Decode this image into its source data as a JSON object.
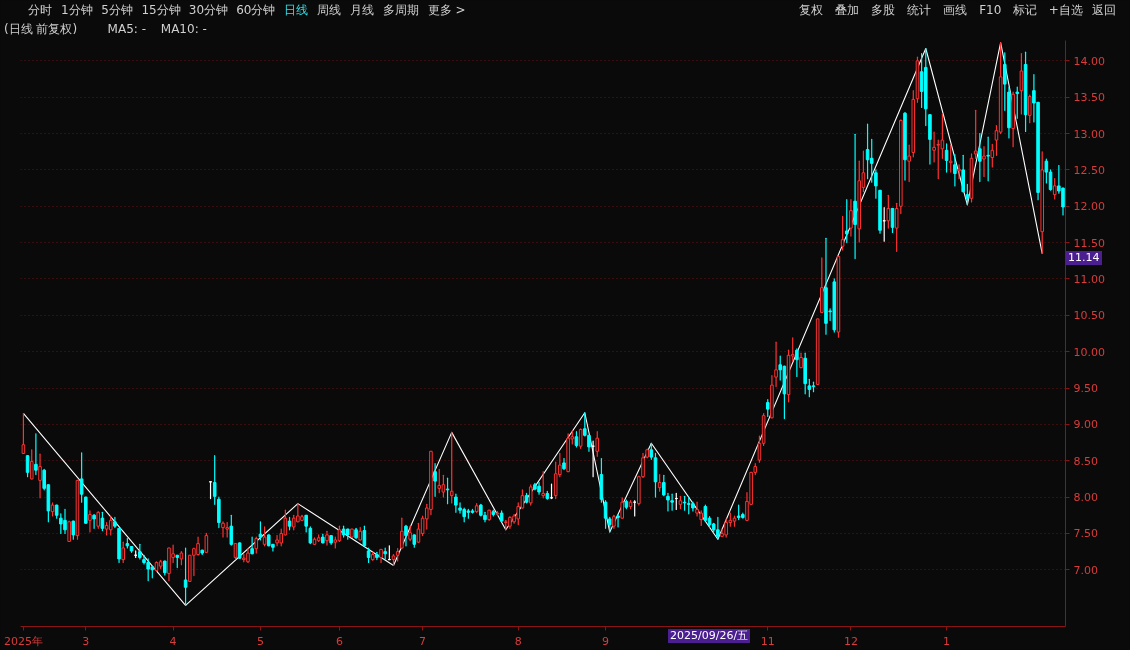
{
  "chart_data": {
    "type": "candlestick",
    "title": "(日线 前复权)",
    "annotations": [
      "分时",
      "1分钟",
      "5分钟",
      "15分钟",
      "30分钟",
      "60分钟",
      "日线",
      "周线",
      "月线",
      "多周期",
      "更多 >",
      "复权",
      "叠加",
      "多股",
      "统计",
      "画线",
      "F10",
      "标记",
      "+自选",
      "返回",
      "MA5: -",
      "MA10: -",
      "2025/09/26/五",
      "11.14"
    ],
    "categories": [
      "2025年",
      null,
      null,
      null,
      null,
      null,
      null,
      null,
      null,
      null,
      null,
      null,
      null,
      null,
      null,
      "3",
      null,
      null,
      null,
      null,
      null,
      null,
      null,
      null,
      null,
      null,
      null,
      null,
      null,
      null,
      null,
      null,
      null,
      null,
      null,
      null,
      "4",
      null,
      null,
      null,
      null,
      null,
      null,
      null,
      null,
      null,
      null,
      null,
      null,
      null,
      null,
      null,
      null,
      null,
      null,
      null,
      null,
      "5",
      null,
      null,
      null,
      null,
      null,
      null,
      null,
      null,
      null,
      null,
      null,
      null,
      null,
      null,
      null,
      null,
      null,
      null,
      "6",
      null,
      null,
      null,
      null,
      null,
      null,
      null,
      null,
      null,
      null,
      null,
      null,
      null,
      null,
      null,
      null,
      null,
      null,
      null,
      "7",
      null,
      null,
      null,
      null,
      null,
      null,
      null,
      null,
      null,
      null,
      null,
      null,
      null,
      null,
      null,
      null,
      null,
      null,
      null,
      null,
      null,
      null,
      "8",
      null,
      null,
      null,
      null,
      null,
      null,
      null,
      null,
      null,
      null,
      null,
      null,
      null,
      null,
      null,
      null,
      null,
      null,
      null,
      null,
      "9",
      null,
      null,
      null,
      null,
      null,
      null,
      null,
      null,
      null,
      null,
      null,
      null,
      null,
      null,
      null,
      null,
      null,
      null,
      null,
      null,
      null,
      null,
      null,
      null,
      null,
      null,
      null,
      null,
      null,
      null,
      null,
      null,
      null,
      null,
      null,
      null,
      null,
      null,
      "11",
      null,
      null,
      null,
      null,
      null,
      null,
      null,
      null,
      null,
      null,
      null,
      null,
      null,
      null,
      null,
      null,
      null,
      null,
      null,
      "12",
      null,
      null,
      null,
      null,
      null,
      null,
      null,
      null,
      null,
      null,
      null,
      null,
      null,
      null,
      null,
      null,
      null,
      null,
      null,
      null,
      null,
      null,
      "1",
      null,
      null,
      null,
      null,
      null,
      null,
      null,
      null,
      null,
      null,
      null,
      null,
      null,
      null,
      null,
      null,
      null,
      null,
      null,
      null,
      null,
      null,
      null,
      null,
      null,
      null,
      null,
      null
    ],
    "ohlc": [
      [
        8.6,
        9.15,
        8.6,
        8.72
      ],
      [
        8.57,
        8.57,
        8.28,
        8.34
      ],
      [
        8.25,
        8.65,
        8.25,
        8.49
      ],
      [
        8.45,
        8.87,
        8.31,
        8.37
      ],
      [
        8.23,
        8.59,
        7.99,
        8.42
      ],
      [
        8.37,
        8.38,
        8.1,
        8.12
      ],
      [
        8.17,
        8.17,
        7.66,
        7.81
      ],
      [
        7.8,
        7.92,
        7.74,
        7.89
      ],
      [
        7.89,
        7.89,
        7.71,
        7.75
      ],
      [
        7.71,
        7.77,
        7.5,
        7.63
      ],
      [
        7.68,
        7.83,
        7.5,
        7.55
      ],
      [
        7.39,
        7.67,
        7.39,
        7.66
      ],
      [
        7.67,
        7.67,
        7.42,
        7.48
      ],
      [
        7.47,
        8.23,
        7.42,
        8.23
      ],
      [
        8.25,
        8.61,
        7.93,
        8.04
      ],
      [
        8.0,
        8.0,
        7.64,
        7.64
      ],
      [
        7.68,
        7.81,
        7.52,
        7.76
      ],
      [
        7.75,
        7.76,
        7.57,
        7.7
      ],
      [
        7.6,
        7.8,
        7.57,
        7.79
      ],
      [
        7.71,
        7.79,
        7.54,
        7.57
      ],
      [
        7.56,
        7.65,
        7.48,
        7.61
      ],
      [
        7.55,
        7.73,
        7.48,
        7.68
      ],
      [
        7.66,
        7.72,
        7.58,
        7.6
      ],
      [
        7.57,
        7.57,
        7.1,
        7.15
      ],
      [
        7.14,
        7.38,
        7.1,
        7.3
      ],
      [
        7.36,
        7.43,
        7.3,
        7.33
      ],
      [
        7.32,
        7.32,
        7.24,
        7.26
      ],
      [
        7.2,
        7.26,
        7.17,
        7.2
      ],
      [
        7.25,
        7.35,
        7.15,
        7.17
      ],
      [
        7.14,
        7.2,
        7.08,
        7.1
      ],
      [
        7.1,
        7.15,
        6.85,
        7.01
      ],
      [
        7.04,
        7.04,
        6.89,
        7.0
      ],
      [
        6.99,
        7.11,
        6.98,
        7.1
      ],
      [
        7.05,
        7.13,
        7.02,
        7.11
      ],
      [
        7.12,
        7.12,
        6.93,
        6.96
      ],
      [
        6.95,
        7.3,
        6.85,
        7.3
      ],
      [
        7.17,
        7.34,
        7.1,
        7.22
      ],
      [
        7.2,
        7.2,
        7.03,
        7.17
      ],
      [
        7.15,
        7.25,
        7.07,
        7.23
      ],
      [
        6.86,
        7.3,
        6.51,
        6.76
      ],
      [
        6.84,
        7.2,
        6.84,
        7.2
      ],
      [
        7.2,
        7.3,
        6.92,
        7.29
      ],
      [
        7.21,
        7.45,
        7.2,
        7.36
      ],
      [
        7.27,
        7.27,
        7.21,
        7.23
      ],
      [
        7.24,
        7.5,
        7.24,
        7.47
      ],
      [
        8.21,
        8.21,
        7.98,
        8.21
      ],
      [
        8.2,
        8.57,
        7.9,
        8.01
      ],
      [
        7.97,
        8.0,
        7.58,
        7.65
      ],
      [
        7.58,
        7.66,
        7.45,
        7.64
      ],
      [
        7.56,
        7.65,
        7.45,
        7.58
      ],
      [
        7.6,
        7.75,
        7.34,
        7.35
      ],
      [
        7.17,
        7.36,
        7.15,
        7.36
      ],
      [
        7.37,
        7.37,
        7.16,
        7.16
      ],
      [
        7.14,
        7.21,
        7.11,
        7.16
      ],
      [
        7.11,
        7.29,
        7.1,
        7.23
      ],
      [
        7.29,
        7.45,
        7.22,
        7.22
      ],
      [
        7.29,
        7.45,
        7.23,
        7.43
      ],
      [
        7.49,
        7.66,
        7.41,
        7.45
      ],
      [
        7.35,
        7.59,
        7.33,
        7.45
      ],
      [
        7.48,
        7.48,
        7.33,
        7.33
      ],
      [
        7.35,
        7.35,
        7.26,
        7.31
      ],
      [
        7.37,
        7.47,
        7.33,
        7.41
      ],
      [
        7.37,
        7.56,
        7.33,
        7.5
      ],
      [
        7.48,
        7.82,
        7.48,
        7.71
      ],
      [
        7.67,
        7.72,
        7.55,
        7.6
      ],
      [
        7.59,
        7.75,
        7.55,
        7.71
      ],
      [
        7.66,
        7.91,
        7.66,
        7.74
      ],
      [
        7.68,
        7.75,
        7.68,
        7.73
      ],
      [
        7.75,
        7.75,
        7.52,
        7.6
      ],
      [
        7.57,
        7.59,
        7.36,
        7.37
      ],
      [
        7.35,
        7.44,
        7.35,
        7.42
      ],
      [
        7.4,
        7.48,
        7.39,
        7.44
      ],
      [
        7.45,
        7.49,
        7.37,
        7.37
      ],
      [
        7.4,
        7.53,
        7.34,
        7.48
      ],
      [
        7.47,
        7.47,
        7.35,
        7.37
      ],
      [
        7.38,
        7.45,
        7.3,
        7.41
      ],
      [
        7.4,
        7.6,
        7.39,
        7.55
      ],
      [
        7.56,
        7.6,
        7.45,
        7.48
      ],
      [
        7.56,
        7.56,
        7.42,
        7.48
      ],
      [
        7.45,
        7.56,
        7.45,
        7.56
      ],
      [
        7.55,
        7.57,
        7.43,
        7.44
      ],
      [
        7.41,
        7.58,
        7.41,
        7.53
      ],
      [
        7.54,
        7.6,
        7.33,
        7.33
      ],
      [
        7.26,
        7.3,
        7.1,
        7.17
      ],
      [
        7.14,
        7.24,
        7.13,
        7.21
      ],
      [
        7.21,
        7.24,
        7.14,
        7.17
      ],
      [
        7.17,
        7.28,
        7.1,
        7.28
      ],
      [
        7.25,
        7.3,
        7.15,
        7.22
      ],
      [
        7.14,
        7.33,
        7.14,
        7.14
      ],
      [
        7.14,
        7.21,
        7.06,
        7.19
      ],
      [
        7.2,
        7.29,
        7.12,
        7.25
      ],
      [
        7.3,
        7.71,
        7.3,
        7.53
      ],
      [
        7.6,
        7.61,
        7.33,
        7.47
      ],
      [
        7.42,
        7.6,
        7.4,
        7.51
      ],
      [
        7.48,
        7.48,
        7.31,
        7.35
      ],
      [
        7.38,
        7.64,
        7.38,
        7.56
      ],
      [
        7.5,
        7.74,
        7.47,
        7.71
      ],
      [
        7.7,
        7.9,
        7.56,
        7.85
      ],
      [
        7.83,
        8.63,
        7.76,
        8.63
      ],
      [
        8.35,
        8.46,
        8.01,
        8.22
      ],
      [
        8.12,
        8.38,
        8.06,
        8.16
      ],
      [
        8.07,
        8.3,
        8.0,
        8.17
      ],
      [
        8.11,
        8.26,
        7.91,
        8.1
      ],
      [
        8.02,
        8.89,
        7.92,
        8.08
      ],
      [
        8.0,
        8.04,
        7.79,
        7.89
      ],
      [
        7.85,
        7.92,
        7.78,
        7.82
      ],
      [
        7.83,
        7.85,
        7.66,
        7.73
      ],
      [
        7.81,
        7.83,
        7.71,
        7.79
      ],
      [
        7.81,
        7.83,
        7.78,
        7.79
      ],
      [
        7.8,
        7.91,
        7.79,
        7.88
      ],
      [
        7.89,
        7.9,
        7.74,
        7.75
      ],
      [
        7.75,
        7.79,
        7.66,
        7.69
      ],
      [
        7.69,
        7.82,
        7.68,
        7.82
      ],
      [
        7.8,
        7.82,
        7.74,
        7.76
      ],
      [
        7.77,
        7.8,
        7.75,
        7.78
      ],
      [
        7.78,
        7.81,
        7.66,
        7.67
      ],
      [
        7.65,
        7.68,
        7.55,
        7.66
      ],
      [
        7.6,
        7.73,
        7.57,
        7.72
      ],
      [
        7.66,
        7.76,
        7.64,
        7.74
      ],
      [
        7.7,
        7.92,
        7.62,
        7.87
      ],
      [
        7.85,
        8.1,
        7.85,
        8.02
      ],
      [
        8.02,
        8.05,
        7.92,
        7.93
      ],
      [
        7.92,
        8.17,
        7.89,
        8.14
      ],
      [
        8.17,
        8.19,
        8.1,
        8.11
      ],
      [
        8.15,
        8.2,
        8.04,
        8.07
      ],
      [
        8.02,
        8.35,
        7.99,
        8.05
      ],
      [
        8.05,
        8.08,
        7.97,
        7.98
      ],
      [
        7.99,
        8.18,
        7.98,
        7.99
      ],
      [
        8.02,
        8.48,
        7.98,
        8.32
      ],
      [
        8.31,
        8.6,
        8.28,
        8.44
      ],
      [
        8.47,
        8.53,
        8.38,
        8.39
      ],
      [
        8.35,
        8.87,
        8.35,
        8.81
      ],
      [
        8.8,
        8.91,
        8.73,
        8.83
      ],
      [
        8.83,
        8.9,
        8.69,
        8.71
      ],
      [
        8.7,
        8.94,
        8.67,
        8.93
      ],
      [
        8.94,
        9.16,
        8.84,
        8.85
      ],
      [
        8.85,
        8.85,
        8.63,
        8.69
      ],
      [
        8.7,
        8.77,
        8.28,
        8.7
      ],
      [
        8.63,
        8.9,
        8.56,
        8.81
      ],
      [
        8.31,
        8.53,
        7.93,
        7.97
      ],
      [
        7.93,
        7.95,
        7.57,
        7.71
      ],
      [
        7.7,
        7.72,
        7.52,
        7.62
      ],
      [
        7.6,
        7.75,
        7.57,
        7.73
      ],
      [
        7.74,
        7.76,
        7.59,
        7.72
      ],
      [
        7.71,
        7.99,
        7.71,
        7.93
      ],
      [
        7.94,
        7.96,
        7.84,
        7.86
      ],
      [
        7.87,
        7.95,
        7.84,
        7.93
      ],
      [
        7.93,
        7.95,
        7.74,
        7.93
      ],
      [
        7.91,
        8.29,
        7.89,
        8.28
      ],
      [
        8.28,
        8.6,
        8.27,
        8.54
      ],
      [
        8.55,
        8.66,
        8.54,
        8.65
      ],
      [
        8.65,
        8.74,
        8.52,
        8.55
      ],
      [
        8.54,
        8.6,
        8.0,
        8.21
      ],
      [
        8.13,
        8.31,
        8.08,
        8.2
      ],
      [
        8.2,
        8.3,
        8.02,
        8.03
      ],
      [
        8.01,
        8.05,
        7.81,
        7.96
      ],
      [
        7.95,
        8.04,
        7.82,
        7.93
      ],
      [
        7.98,
        8.05,
        7.83,
        7.98
      ],
      [
        7.9,
        8.01,
        7.84,
        7.95
      ],
      [
        7.93,
        8.01,
        7.82,
        7.92
      ],
      [
        7.91,
        8.0,
        7.77,
        7.9
      ],
      [
        7.91,
        7.93,
        7.81,
        7.85
      ],
      [
        7.78,
        7.93,
        7.74,
        7.83
      ],
      [
        7.69,
        7.81,
        7.61,
        7.78
      ],
      [
        7.87,
        7.89,
        7.67,
        7.68
      ],
      [
        7.71,
        7.73,
        7.58,
        7.62
      ],
      [
        7.63,
        7.64,
        7.52,
        7.55
      ],
      [
        7.55,
        7.72,
        7.42,
        7.46
      ],
      [
        7.46,
        7.56,
        7.46,
        7.5
      ],
      [
        7.48,
        7.7,
        7.45,
        7.65
      ],
      [
        7.65,
        7.78,
        7.6,
        7.68
      ],
      [
        7.67,
        7.74,
        7.6,
        7.71
      ],
      [
        7.74,
        7.89,
        7.69,
        7.72
      ],
      [
        7.76,
        7.78,
        7.71,
        7.72
      ],
      [
        7.68,
        8.06,
        7.68,
        7.94
      ],
      [
        7.9,
        8.34,
        7.9,
        8.34
      ],
      [
        8.34,
        8.46,
        8.31,
        8.42
      ],
      [
        8.51,
        8.84,
        8.48,
        8.74
      ],
      [
        8.74,
        9.15,
        8.71,
        9.12
      ],
      [
        9.3,
        9.34,
        9.11,
        9.21
      ],
      [
        9.09,
        9.67,
        9.09,
        9.54
      ],
      [
        9.65,
        10.13,
        9.52,
        9.75
      ],
      [
        9.82,
        9.94,
        9.61,
        9.75
      ],
      [
        9.8,
        9.8,
        9.08,
        9.42
      ],
      [
        9.41,
        10.02,
        9.31,
        9.95
      ],
      [
        9.94,
        10.19,
        9.88,
        9.96
      ],
      [
        10.02,
        10.04,
        9.66,
        9.89
      ],
      [
        9.78,
        9.98,
        9.78,
        9.92
      ],
      [
        9.91,
        9.98,
        9.42,
        9.56
      ],
      [
        9.53,
        9.62,
        9.38,
        9.48
      ],
      [
        9.53,
        9.58,
        9.45,
        9.52
      ],
      [
        9.55,
        10.45,
        9.55,
        10.45
      ],
      [
        10.54,
        11.29,
        10.54,
        10.88
      ],
      [
        10.88,
        11.56,
        10.24,
        10.39
      ],
      [
        10.56,
        10.59,
        10.43,
        10.55
      ],
      [
        10.96,
        11.0,
        10.27,
        10.3
      ],
      [
        10.27,
        11.31,
        10.2,
        11.31
      ],
      [
        11.45,
        11.86,
        11.4,
        11.54
      ],
      [
        11.66,
        12.09,
        11.5,
        11.62
      ],
      [
        11.7,
        12.09,
        11.59,
        11.94
      ],
      [
        12.07,
        12.99,
        11.28,
        11.75
      ],
      [
        11.69,
        12.62,
        11.51,
        12.35
      ],
      [
        12.26,
        12.76,
        12.2,
        12.46
      ],
      [
        12.78,
        13.13,
        12.38,
        12.64
      ],
      [
        12.66,
        12.92,
        12.33,
        12.59
      ],
      [
        12.46,
        12.5,
        12.11,
        12.28
      ],
      [
        12.22,
        12.22,
        11.63,
        11.67
      ],
      [
        11.8,
        11.98,
        11.52,
        11.8
      ],
      [
        11.8,
        12.15,
        11.7,
        11.97
      ],
      [
        11.97,
        11.97,
        11.64,
        11.71
      ],
      [
        11.7,
        12.04,
        11.38,
        11.97
      ],
      [
        12.0,
        13.19,
        11.9,
        13.18
      ],
      [
        13.28,
        13.29,
        12.36,
        12.64
      ],
      [
        12.62,
        12.84,
        12.34,
        12.69
      ],
      [
        12.74,
        13.59,
        12.68,
        13.47
      ],
      [
        13.48,
        14.05,
        13.43,
        14.0
      ],
      [
        13.85,
        14.1,
        13.36,
        13.58
      ],
      [
        13.91,
        14.17,
        13.11,
        13.34
      ],
      [
        13.26,
        13.26,
        12.58,
        12.92
      ],
      [
        12.77,
        13.02,
        12.61,
        12.81
      ],
      [
        12.84,
        12.91,
        12.38,
        12.85
      ],
      [
        12.79,
        13.27,
        12.66,
        12.91
      ],
      [
        12.77,
        12.86,
        12.47,
        12.63
      ],
      [
        12.6,
        12.84,
        12.47,
        12.62
      ],
      [
        12.57,
        12.71,
        12.28,
        12.45
      ],
      [
        12.49,
        12.57,
        12.38,
        12.51
      ],
      [
        12.5,
        12.7,
        12.2,
        12.2
      ],
      [
        12.16,
        12.3,
        12.02,
        12.11
      ],
      [
        12.11,
        12.72,
        12.06,
        12.66
      ],
      [
        12.72,
        13.32,
        12.66,
        12.76
      ],
      [
        12.79,
        13.0,
        12.34,
        12.62
      ],
      [
        12.65,
        12.82,
        12.41,
        12.69
      ],
      [
        12.7,
        12.95,
        12.35,
        12.69
      ],
      [
        12.67,
        12.85,
        12.54,
        12.77
      ],
      [
        12.91,
        13.11,
        12.7,
        13.04
      ],
      [
        13.02,
        14.25,
        13.0,
        13.78
      ],
      [
        13.95,
        14.11,
        13.32,
        13.68
      ],
      [
        13.57,
        13.64,
        12.94,
        13.08
      ],
      [
        13.07,
        13.57,
        12.82,
        13.54
      ],
      [
        13.57,
        13.64,
        13.21,
        13.55
      ],
      [
        13.59,
        14.1,
        13.27,
        13.86
      ],
      [
        13.95,
        14.12,
        13.03,
        13.26
      ],
      [
        13.25,
        13.53,
        13.15,
        13.51
      ],
      [
        13.59,
        13.81,
        13.16,
        13.42
      ],
      [
        13.43,
        13.43,
        12.09,
        12.19
      ],
      [
        11.65,
        12.75,
        11.35,
        12.5
      ],
      [
        12.62,
        12.65,
        12.32,
        12.47
      ],
      [
        12.47,
        12.5,
        12.22,
        12.23
      ],
      [
        12.16,
        12.38,
        12.1,
        12.28
      ],
      [
        12.28,
        12.56,
        12.18,
        12.21
      ],
      [
        12.25,
        12.25,
        11.88,
        11.99
      ]
    ],
    "colors": [
      "#ff3232",
      "#00ffff",
      "#ff3232",
      "#00ffff",
      "#ff3232",
      "#00ffff",
      "#00ffff",
      "#ff3232",
      "#00ffff",
      "#00ffff",
      "#00ffff",
      "#ff3232",
      "#00ffff",
      "#ff3232",
      "#00ffff",
      "#00ffff",
      "#ff3232",
      "#00ffff",
      "#ff3232",
      "#00ffff",
      "#ff3232",
      "#ff3232",
      "#00ffff",
      "#00ffff",
      "#ff3232",
      "#00ffff",
      "#00ffff",
      "#ffffff",
      "#00ffff",
      "#00ffff",
      "#00ffff",
      "#00ffff",
      "#ff3232",
      "#ff3232",
      "#00ffff",
      "#ff3232",
      "#ff3232",
      "#00ffff",
      "#ff3232",
      "#00ffff",
      "#ff3232",
      "#ff3232",
      "#ff3232",
      "#00ffff",
      "#ff3232",
      "#ffffff",
      "#00ffff",
      "#00ffff",
      "#ff3232",
      "#ff3232",
      "#00ffff",
      "#ff3232",
      "#00ffff",
      "#ff3232",
      "#ff3232",
      "#00ffff",
      "#ff3232",
      "#00ffff",
      "#ff3232",
      "#00ffff",
      "#00ffff",
      "#ff3232",
      "#ff3232",
      "#ff3232",
      "#00ffff",
      "#ff3232",
      "#ff3232",
      "#ff3232",
      "#00ffff",
      "#00ffff",
      "#ff3232",
      "#ff3232",
      "#00ffff",
      "#ff3232",
      "#00ffff",
      "#ff3232",
      "#ff3232",
      "#00ffff",
      "#00ffff",
      "#ff3232",
      "#00ffff",
      "#ff3232",
      "#00ffff",
      "#00ffff",
      "#ff3232",
      "#00ffff",
      "#ff3232",
      "#00ffff",
      "#ffffff",
      "#ff3232",
      "#ff3232",
      "#ff3232",
      "#00ffff",
      "#ff3232",
      "#00ffff",
      "#ff3232",
      "#ff3232",
      "#ff3232",
      "#ff3232",
      "#00ffff",
      "#ff3232",
      "#ff3232",
      "#00ffff",
      "#ff3232",
      "#00ffff",
      "#00ffff",
      "#00ffff",
      "#00ffff",
      "#00ffff",
      "#ff3232",
      "#00ffff",
      "#00ffff",
      "#ff3232",
      "#00ffff",
      "#ff3232",
      "#00ffff",
      "#ff3232",
      "#ff3232",
      "#ff3232",
      "#ff3232",
      "#ff3232",
      "#00ffff",
      "#ff3232",
      "#00ffff",
      "#00ffff",
      "#ff3232",
      "#00ffff",
      "#ffffff",
      "#ff3232",
      "#ff3232",
      "#00ffff",
      "#ff3232",
      "#ff3232",
      "#00ffff",
      "#ff3232",
      "#00ffff",
      "#00ffff",
      "#ffffff",
      "#ff3232",
      "#00ffff",
      "#00ffff",
      "#00ffff",
      "#ff3232",
      "#00ffff",
      "#ff3232",
      "#00ffff",
      "#ff3232",
      "#ffffff",
      "#ff3232",
      "#ff3232",
      "#ff3232",
      "#00ffff",
      "#00ffff",
      "#ff3232",
      "#00ffff",
      "#00ffff",
      "#00ffff",
      "#ffffff",
      "#ff3232",
      "#00ffff",
      "#00ffff",
      "#00ffff",
      "#ff3232",
      "#ff3232",
      "#00ffff",
      "#00ffff",
      "#00ffff",
      "#00ffff",
      "#ff3232",
      "#ff3232",
      "#ff3232",
      "#ff3232",
      "#00ffff",
      "#00ffff",
      "#ff3232",
      "#ff3232",
      "#ff3232",
      "#ff3232",
      "#ff3232",
      "#00ffff",
      "#ff3232",
      "#ff3232",
      "#00ffff",
      "#00ffff",
      "#ff3232",
      "#ff3232",
      "#00ffff",
      "#ff3232",
      "#00ffff",
      "#00ffff",
      "#00ffff",
      "#ff3232",
      "#ff3232",
      "#00ffff",
      "#00ffff",
      "#00ffff",
      "#ff3232",
      "#ff3232",
      "#00ffff",
      "#ff3232",
      "#00ffff",
      "#ff3232",
      "#ff3232",
      "#00ffff",
      "#00ffff",
      "#00ffff",
      "#00ffff",
      "#ffffff",
      "#ff3232",
      "#00ffff",
      "#ff3232",
      "#ff3232",
      "#00ffff",
      "#ff3232",
      "#ff3232",
      "#ff3232",
      "#00ffff",
      "#00ffff",
      "#00ffff",
      "#ff3232",
      "#ff3232",
      "#ff3232",
      "#00ffff",
      "#ff3232",
      "#00ffff",
      "#ff3232",
      "#00ffff",
      "#00ffff",
      "#ff3232",
      "#ff3232",
      "#00ffff",
      "#ff3232",
      "#00ffff",
      "#ff3232",
      "#ff3232",
      "#ff3232",
      "#00ffff",
      "#00ffff",
      "#ff3232",
      "#00ffff",
      "#ff3232",
      "#00ffff",
      "#ff3232",
      "#00ffff",
      "#00ffff",
      "#ff3232",
      "#00ffff",
      "#00ffff",
      "#ff3232",
      "#00ffff",
      "#00ffff"
    ],
    "series": [
      {
        "type": "line",
        "color": "#ffffff",
        "values": [
          9.15,
          null,
          null,
          null,
          null,
          null,
          null,
          null,
          null,
          null,
          null,
          null,
          null,
          null,
          null,
          null,
          null,
          null,
          null,
          null,
          null,
          null,
          null,
          null,
          null,
          null,
          null,
          null,
          null,
          null,
          null,
          null,
          null,
          null,
          null,
          null,
          null,
          null,
          null,
          6.51,
          null,
          null,
          null,
          null,
          null,
          null,
          null,
          null,
          null,
          null,
          null,
          null,
          null,
          null,
          null,
          null,
          null,
          null,
          null,
          null,
          null,
          null,
          null,
          null,
          null,
          null,
          7.91,
          null,
          null,
          null,
          null,
          null,
          null,
          null,
          null,
          null,
          null,
          null,
          null,
          null,
          null,
          null,
          null,
          null,
          null,
          null,
          null,
          null,
          null,
          7.06,
          null,
          null,
          null,
          null,
          null,
          null,
          null,
          null,
          null,
          null,
          null,
          null,
          null,
          8.89,
          null,
          null,
          null,
          null,
          null,
          null,
          null,
          null,
          null,
          null,
          null,
          null,
          7.55,
          null,
          null,
          null,
          null,
          null,
          null,
          null,
          null,
          null,
          null,
          null,
          null,
          null,
          null,
          null,
          null,
          null,
          null,
          9.16,
          null,
          null,
          null,
          null,
          null,
          7.52,
          null,
          null,
          null,
          null,
          null,
          null,
          null,
          null,
          null,
          8.74,
          null,
          null,
          null,
          null,
          null,
          null,
          null,
          null,
          null,
          null,
          null,
          null,
          null,
          null,
          null,
          7.42,
          null,
          null,
          null,
          null,
          null,
          null,
          null,
          null,
          null,
          null,
          null,
          null,
          null,
          null,
          null,
          null,
          null,
          null,
          null,
          null,
          null,
          null,
          null,
          null,
          null,
          null,
          null,
          null,
          null,
          null,
          null,
          null,
          null,
          null,
          null,
          null,
          null,
          null,
          null,
          null,
          null,
          null,
          null,
          null,
          null,
          null,
          null,
          null,
          null,
          14.17,
          null,
          null,
          null,
          null,
          null,
          null,
          null,
          null,
          null,
          12.02,
          null,
          null,
          null,
          null,
          null,
          null,
          null,
          14.25,
          null,
          null,
          null,
          null,
          null,
          null,
          null,
          null,
          null,
          11.35,
          null,
          null,
          null,
          null,
          null
        ]
      }
    ],
    "ylim": [
      6.22,
      14.28
    ],
    "yticks": [
      {
        "value": 7,
        "label": "7.00"
      },
      {
        "value": 7.5,
        "label": "7.50"
      },
      {
        "value": 8,
        "label": "8.00"
      },
      {
        "value": 8.5,
        "label": "8.50"
      },
      {
        "value": 9,
        "label": "9.00"
      },
      {
        "value": 9.5,
        "label": "9.50"
      },
      {
        "value": 10,
        "label": "10.00"
      },
      {
        "value": 10.5,
        "label": "10.50"
      },
      {
        "value": 11,
        "label": "11.00"
      },
      {
        "value": 11.5,
        "label": "11.50"
      },
      {
        "value": 12,
        "label": "12.00"
      },
      {
        "value": 12.5,
        "label": "12.50"
      },
      {
        "value": 13,
        "label": "13.00"
      },
      {
        "value": 13.5,
        "label": "13.50"
      },
      {
        "value": 14,
        "label": "14.00"
      }
    ],
    "grid": "y"
  }
}
